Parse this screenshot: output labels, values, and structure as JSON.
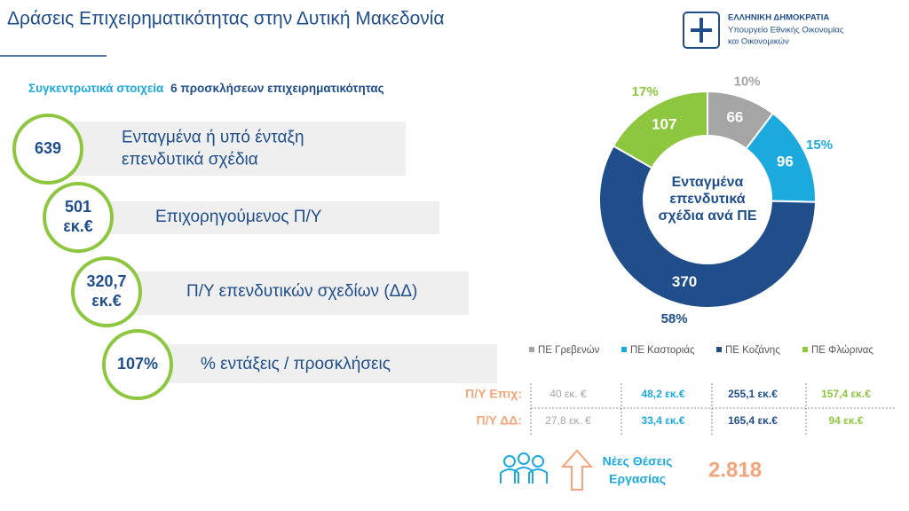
{
  "header": {
    "title": "Δράσεις Επιχειρηματικότητας στην Δυτική Μακεδονία",
    "logo_lines": [
      "ΕΛΛΗΝΙΚΗ ΔΗΜΟΚΡΑΤΙΑ",
      "Υπουργείο Εθνικής Οικονομίας",
      "και Οικονομικών"
    ]
  },
  "subtitle": {
    "lead": "Συγκεντρωτικά στοιχεία",
    "rest": "6 προσκλήσεων επιχειρηματικότητας"
  },
  "kpis": [
    {
      "value_lines": [
        "639"
      ],
      "label_lines": [
        "Ενταγμένα ή υπό ένταξη",
        "επενδυτικά σχέδια"
      ]
    },
    {
      "value_lines": [
        "501",
        "εκ.€"
      ],
      "label_lines": [
        "Επιχορηγούμενος Π/Υ"
      ]
    },
    {
      "value_lines": [
        "320,7",
        "εκ.€"
      ],
      "label_lines": [
        "Π/Υ επενδυτικών σχεδίων (ΔΔ)"
      ]
    },
    {
      "value_lines": [
        "107%"
      ],
      "label_lines": [
        "% εντάξεις / προσκλήσεις"
      ]
    }
  ],
  "chart_data": {
    "type": "donut",
    "center_lines": [
      "Ενταγμένα",
      "επενδυτικά",
      "σχέδια ανά ΠΕ"
    ],
    "categories": [
      "ΠΕ Γρεβενών",
      "ΠΕ Καστοριάς",
      "ΠΕ Κοζάνης",
      "ΠΕ Φλώρινας"
    ],
    "values": [
      66,
      96,
      370,
      107
    ],
    "percent_labels": [
      "10%",
      "15%",
      "58%",
      "17%"
    ],
    "colors": [
      "#a5a5a5",
      "#1ca9de",
      "#1f4e8a",
      "#8dc63f"
    ],
    "legend": "bottom"
  },
  "table": {
    "rows": [
      {
        "label": "Π/Υ Επιχ:",
        "cells": [
          "40 εκ. €",
          "48,2 εκ.€",
          "255,1 εκ.€",
          "157,4 εκ.€"
        ]
      },
      {
        "label": "Π/Υ ΔΔ:",
        "cells": [
          "27,8 εκ. €",
          "33,4 εκ.€",
          "165,4 εκ.€",
          "94 εκ.€"
        ]
      }
    ]
  },
  "jobs": {
    "label_lines": [
      "Νέες Θέσεις",
      "Εργασίας"
    ],
    "value": "2.818"
  }
}
